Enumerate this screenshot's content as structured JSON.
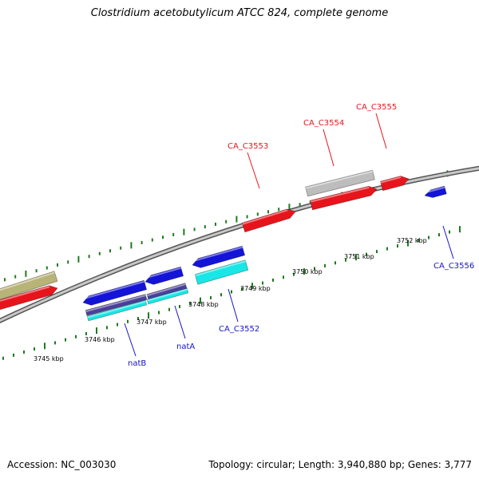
{
  "title": "Clostridium acetobutylicum ATCC 824, complete genome",
  "footer": {
    "accession": "Accession: NC_003030",
    "stats": "Topology: circular; Length: 3,940,880 bp; Genes: 3,777"
  },
  "colors": {
    "plus_strand_gene": "#e8141c",
    "minus_strand_gene": "#1414d8",
    "feature_cyan": "#19e6e6",
    "feature_navy": "#4a3f9a",
    "feature_gray": "#bdbdbd",
    "feature_olive": "#b8b478",
    "backbone": "#888888",
    "tick": "#1e7a1e",
    "label_plus": "#e8141c",
    "label_minus": "#1414c8"
  },
  "kbp_ticks": [
    {
      "label": "3745 kbp"
    },
    {
      "label": "3746 kbp"
    },
    {
      "label": "3747 kbp"
    },
    {
      "label": "3748 kbp"
    },
    {
      "label": "3749 kbp"
    },
    {
      "label": "3750 kbp"
    },
    {
      "label": "3751 kbp"
    },
    {
      "label": "3752 kbp"
    }
  ],
  "gene_labels": [
    {
      "name": "CA_C3553",
      "strand": "plus"
    },
    {
      "name": "CA_C3554",
      "strand": "plus"
    },
    {
      "name": "CA_C3555",
      "strand": "plus"
    },
    {
      "name": "CA_C3556",
      "strand": "minus"
    },
    {
      "name": "CA_C3552",
      "strand": "minus"
    },
    {
      "name": "natA",
      "strand": "minus"
    },
    {
      "name": "natB",
      "strand": "minus"
    }
  ]
}
